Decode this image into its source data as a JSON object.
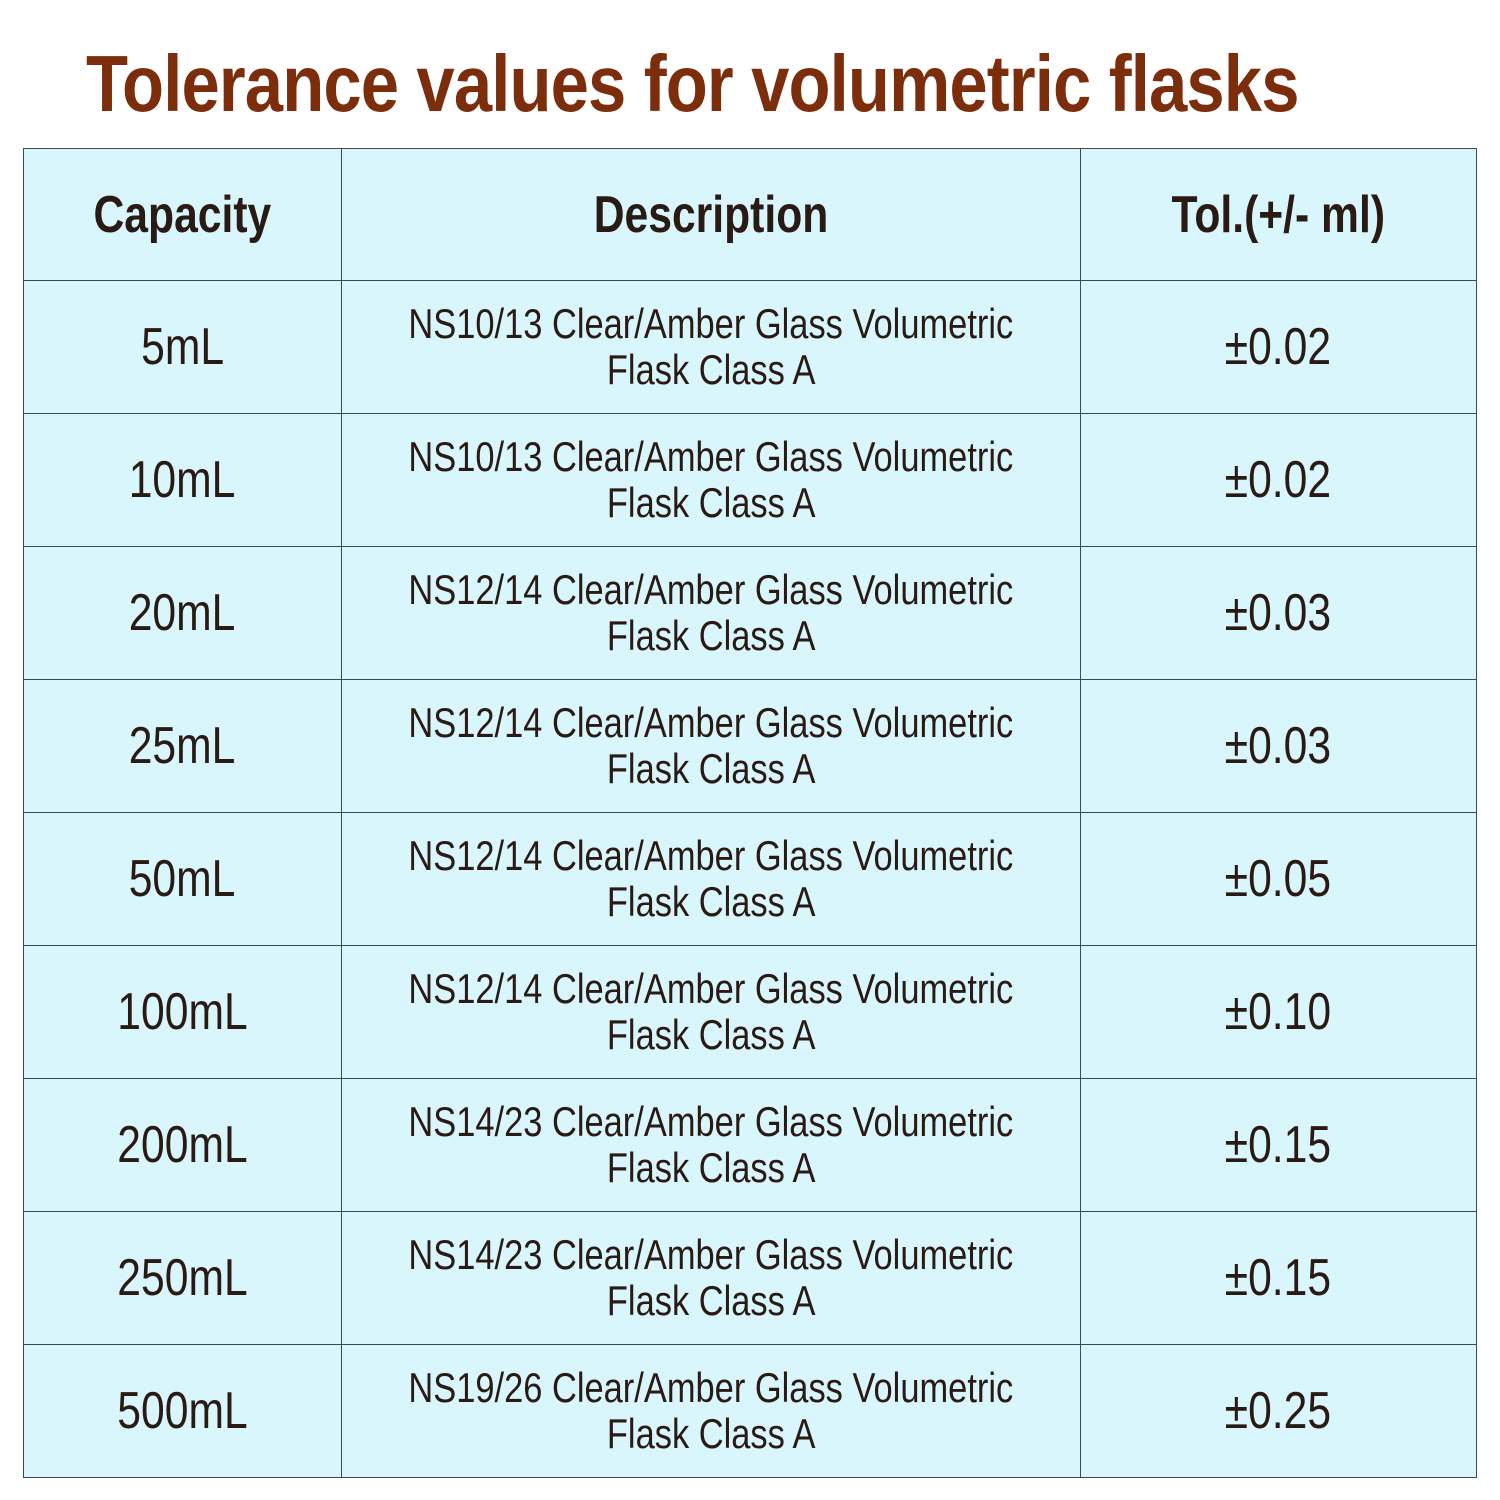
{
  "title": "Tolerance values for volumetric flasks",
  "headers": [
    "Capacity",
    "Description",
    "Tol.(+/- ml)"
  ],
  "rows": [
    {
      "capacity": "5mL",
      "desc1": "NS10/13 Clear/Amber Glass Volumetric",
      "desc2": "Flask Class A",
      "tol": "±0.02"
    },
    {
      "capacity": "10mL",
      "desc1": "NS10/13 Clear/Amber Glass Volumetric",
      "desc2": "Flask Class A",
      "tol": "±0.02"
    },
    {
      "capacity": "20mL",
      "desc1": "NS12/14 Clear/Amber Glass Volumetric",
      "desc2": "Flask Class A",
      "tol": "±0.03"
    },
    {
      "capacity": "25mL",
      "desc1": "NS12/14 Clear/Amber Glass Volumetric",
      "desc2": "Flask Class A",
      "tol": "±0.03"
    },
    {
      "capacity": "50mL",
      "desc1": "NS12/14 Clear/Amber Glass Volumetric",
      "desc2": "Flask Class A",
      "tol": "±0.05"
    },
    {
      "capacity": "100mL",
      "desc1": "NS12/14 Clear/Amber Glass Volumetric",
      "desc2": "Flask Class A",
      "tol": "±0.10"
    },
    {
      "capacity": "200mL",
      "desc1": "NS14/23 Clear/Amber Glass Volumetric",
      "desc2": "Flask Class A",
      "tol": "±0.15"
    },
    {
      "capacity": "250mL",
      "desc1": "NS14/23 Clear/Amber Glass Volumetric",
      "desc2": "Flask Class A",
      "tol": "±0.15"
    },
    {
      "capacity": "500mL",
      "desc1": "NS19/26 Clear/Amber Glass Volumetric",
      "desc2": "Flask Class A",
      "tol": "±0.25"
    }
  ]
}
